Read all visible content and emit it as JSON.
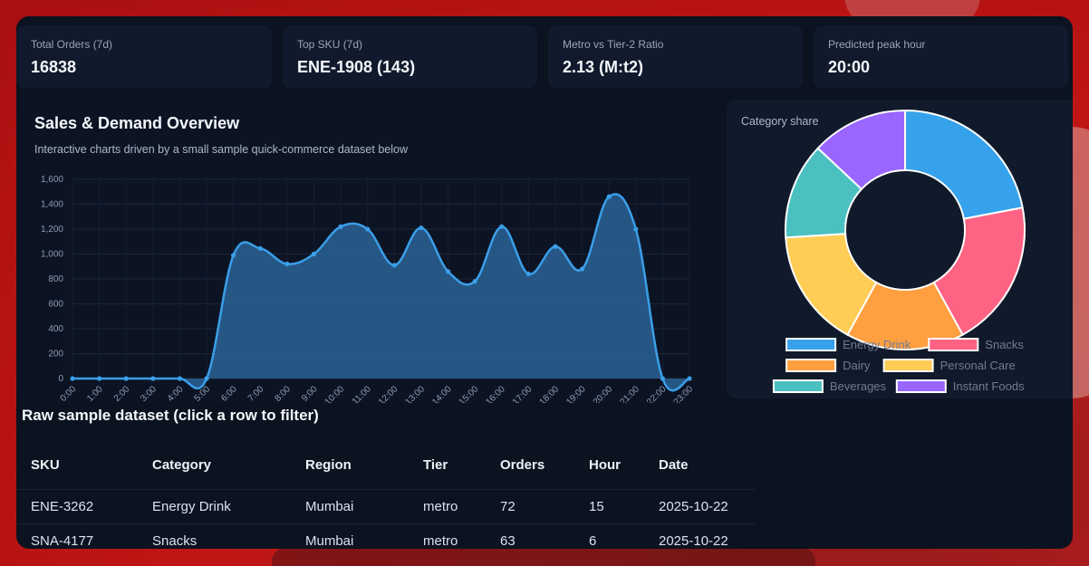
{
  "kpis": [
    {
      "label": "Total Orders (7d)",
      "value": "16838"
    },
    {
      "label": "Top SKU (7d)",
      "value": "ENE-1908 (143)"
    },
    {
      "label": "Metro vs Tier-2 Ratio",
      "value": "2.13 (M:t2)"
    },
    {
      "label": "Predicted peak hour",
      "value": "20:00"
    }
  ],
  "overview": {
    "title": "Sales & Demand Overview",
    "subtitle": "Interactive charts driven by a small sample quick-commerce dataset below"
  },
  "donut": {
    "title": "Category share"
  },
  "chart_data": [
    {
      "type": "area",
      "x": [
        "0:00",
        "1:00",
        "2:00",
        "3:00",
        "4:00",
        "5:00",
        "6:00",
        "7:00",
        "8:00",
        "9:00",
        "10:00",
        "11:00",
        "12:00",
        "13:00",
        "14:00",
        "15:00",
        "16:00",
        "17:00",
        "18:00",
        "19:00",
        "20:00",
        "21:00",
        "22:00",
        "23:00"
      ],
      "values": [
        0,
        0,
        0,
        0,
        0,
        0,
        990,
        1045,
        920,
        1000,
        1220,
        1200,
        910,
        1210,
        860,
        780,
        1220,
        840,
        1060,
        880,
        1460,
        1200,
        0,
        0
      ],
      "ylim": [
        0,
        1600
      ],
      "yticks": [
        "0",
        "200",
        "400",
        "600",
        "800",
        "1,000",
        "1,200",
        "1,400",
        "1,600"
      ],
      "color": "#3b9ee8",
      "fill": "#285a8a",
      "grid": true
    },
    {
      "type": "pie",
      "categories": [
        "Energy Drink",
        "Snacks",
        "Dairy",
        "Personal Care",
        "Beverages",
        "Instant Foods"
      ],
      "values": [
        22,
        20,
        16,
        16,
        13,
        13
      ],
      "colors": [
        "#36a2eb",
        "#ff6384",
        "#ff9f40",
        "#ffcd56",
        "#4bc0c0",
        "#9966ff"
      ],
      "legend": "bottom"
    }
  ],
  "table": {
    "title": "Raw sample dataset (click a row to filter)",
    "headers": [
      "SKU",
      "Category",
      "Region",
      "Tier",
      "Orders",
      "Hour",
      "Date"
    ],
    "rows": [
      [
        "ENE-3262",
        "Energy Drink",
        "Mumbai",
        "metro",
        "72",
        "15",
        "2025-10-22"
      ],
      [
        "SNA-4177",
        "Snacks",
        "Mumbai",
        "metro",
        "63",
        "6",
        "2025-10-22"
      ]
    ]
  }
}
